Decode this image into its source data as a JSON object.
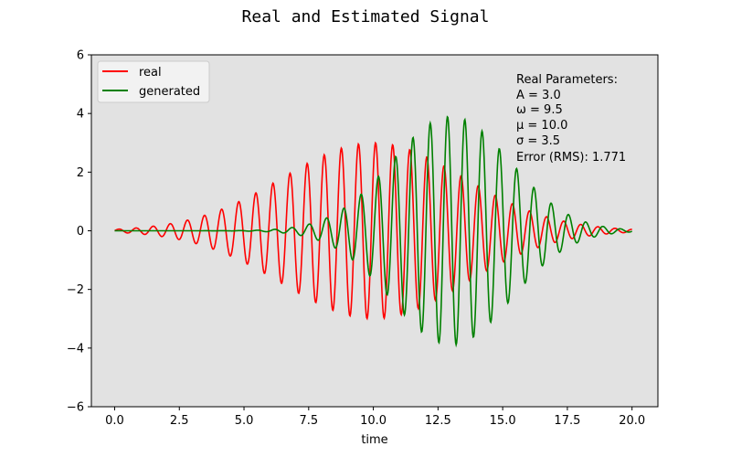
{
  "chart_data": {
    "type": "line",
    "title": "Real and Estimated Signal",
    "xlabel": "time",
    "ylabel": "",
    "xlim": [
      -0.9,
      21.0
    ],
    "ylim": [
      -6,
      6
    ],
    "xticks": [
      "0.0",
      "2.5",
      "5.0",
      "7.5",
      "10.0",
      "12.5",
      "15.0",
      "17.5",
      "20.0"
    ],
    "xtick_values": [
      0,
      2.5,
      5,
      7.5,
      10,
      12.5,
      15,
      17.5,
      20
    ],
    "yticks": [
      "−6",
      "−4",
      "−2",
      "0",
      "2",
      "4",
      "6"
    ],
    "ytick_values": [
      -6,
      -4,
      -2,
      0,
      2,
      4,
      6
    ],
    "grid": false,
    "background": "#e2e2e2",
    "legend_position": "top-left",
    "x_range": [
      0,
      20
    ],
    "sample_count": 1000,
    "series": [
      {
        "name": "real",
        "color": "#ff0000",
        "amplitude": 3.0,
        "omega": 9.5,
        "mu": 10.0,
        "sigma": 3.5
      },
      {
        "name": "generated",
        "color": "#008000",
        "amplitude": 3.9,
        "omega": 9.4,
        "mu": 13.0,
        "sigma": 2.3
      }
    ],
    "annotation": {
      "lines": [
        "Real Parameters:",
        "A = 3.0",
        "ω = 9.5",
        "μ = 10.0",
        "σ = 3.5",
        "Error (RMS): 1.771"
      ]
    }
  }
}
